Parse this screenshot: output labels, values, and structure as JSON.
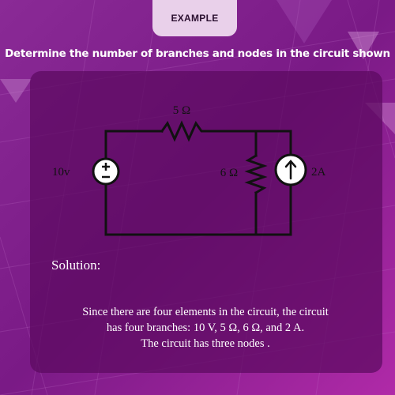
{
  "header": {
    "tag": "EXAMPLE"
  },
  "problem": {
    "title": "Determine the number of branches and nodes in the circuit shown"
  },
  "circuit": {
    "source_voltage_label": "10v",
    "resistor_top_label": "5 Ω",
    "resistor_mid_label": "6 Ω",
    "current_source_label": "2A"
  },
  "solution": {
    "heading": "Solution:",
    "line1": "Since there are four elements in the circuit, the circuit",
    "line2": "has four branches: 10 V, 5 Ω, 6 Ω, and 2 A.",
    "line3": "The circuit has three nodes ."
  },
  "colors": {
    "background": "#7a1a86",
    "card": "#5c0a60",
    "tag": "#e9d0ea",
    "wire": "#111111",
    "text": "#ffffff"
  }
}
